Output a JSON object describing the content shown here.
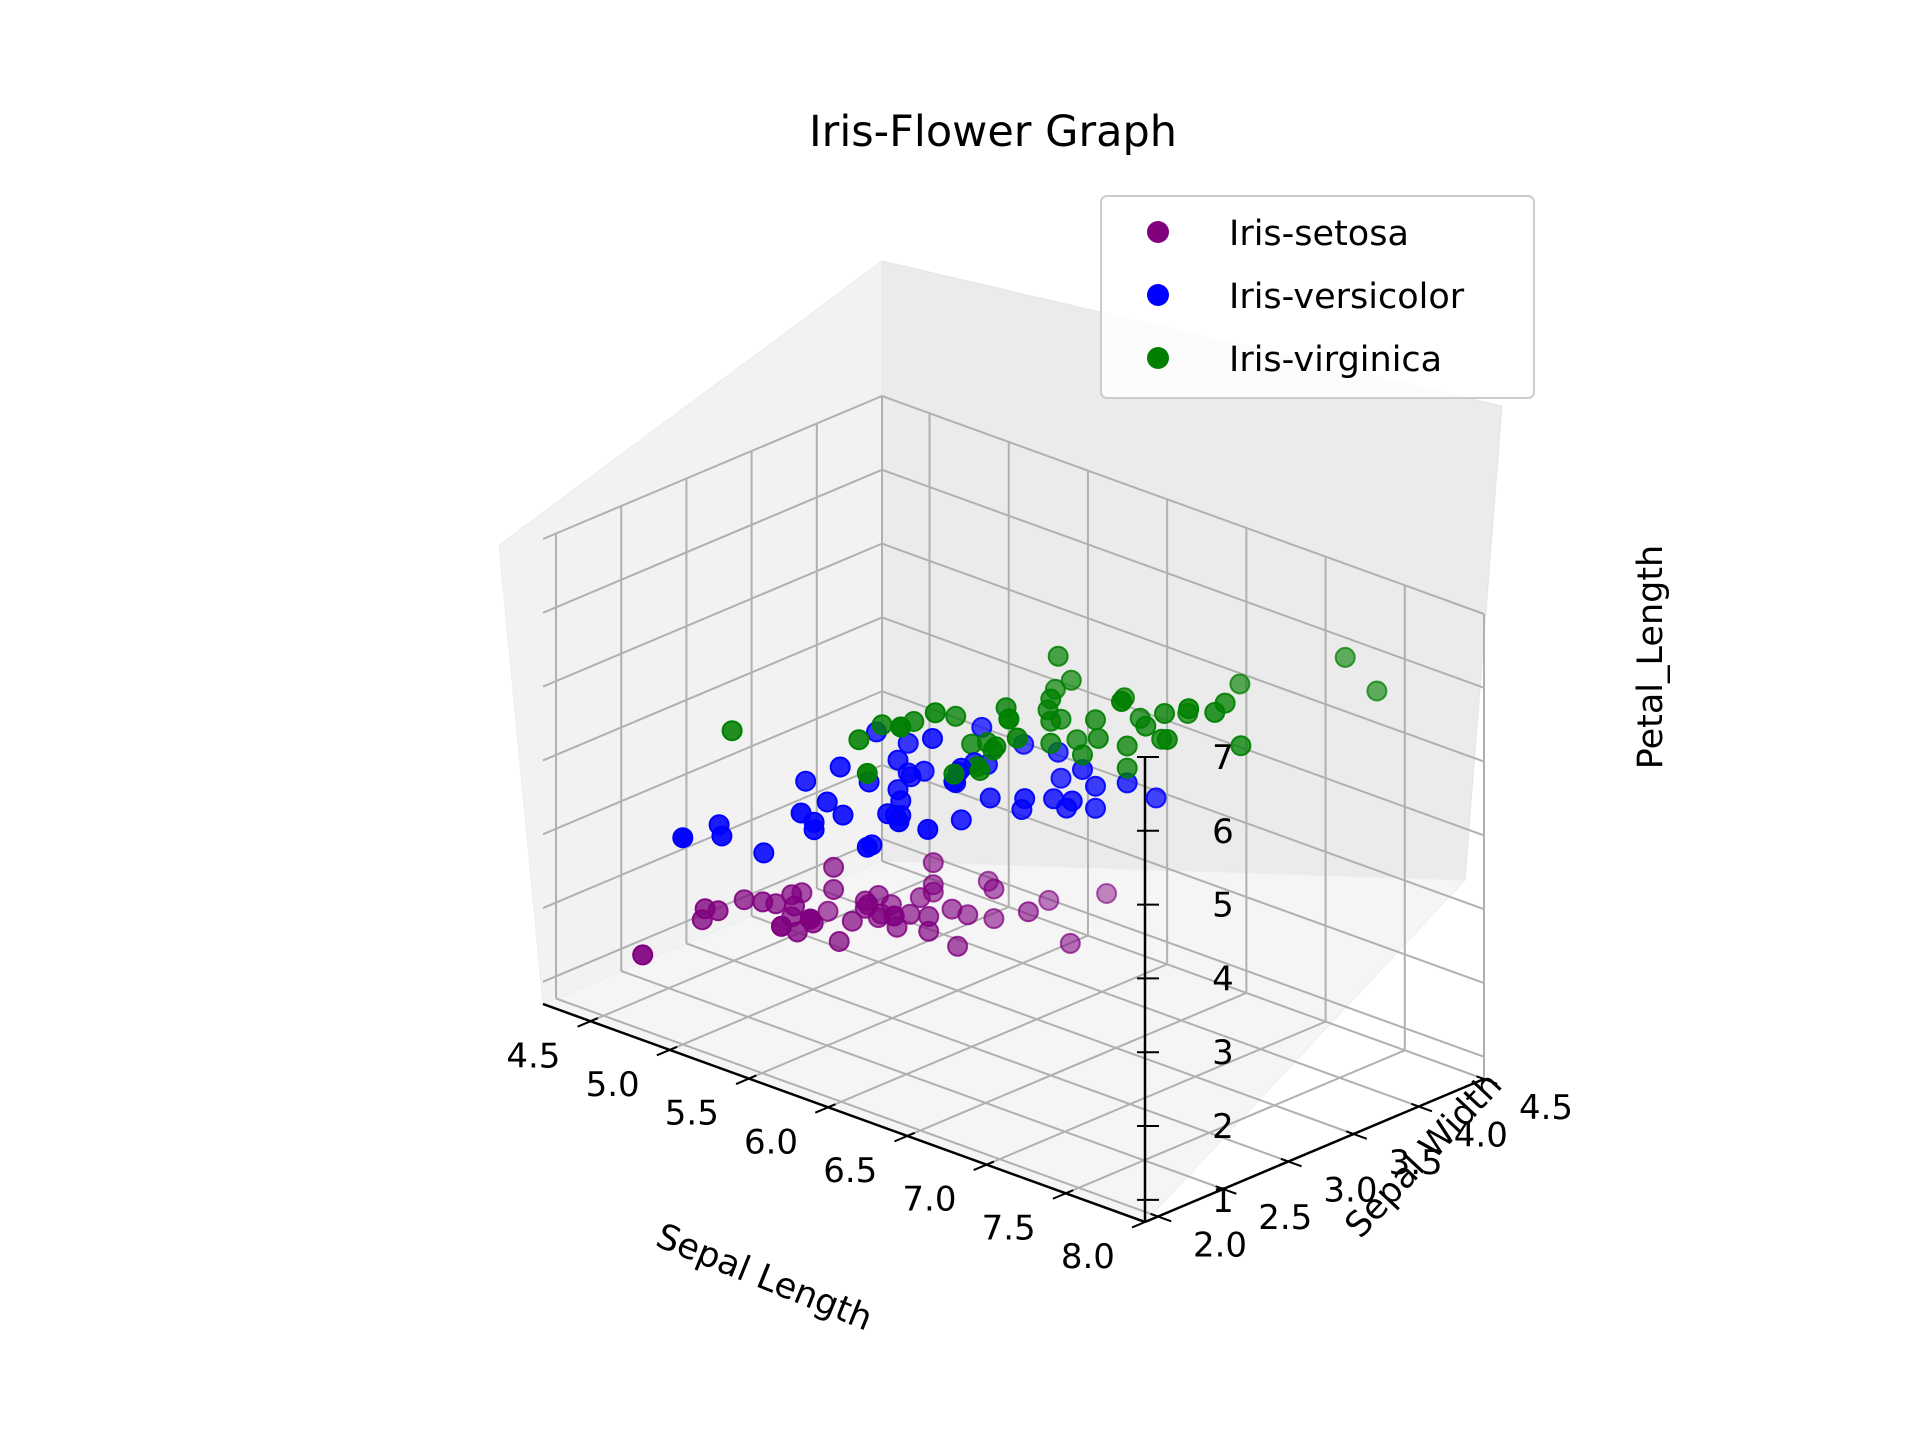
{
  "chart_data": {
    "type": "scatter",
    "title": "Iris-Flower Graph",
    "projection": "3d",
    "axes": {
      "x": {
        "label": "Sepal Length",
        "ticks": [
          "4.5",
          "5.0",
          "5.5",
          "6.0",
          "6.5",
          "7.0",
          "7.5",
          "8.0"
        ],
        "range": [
          4.2,
          8.0
        ]
      },
      "y": {
        "label": "Sepal Width",
        "ticks": [
          "2.0",
          "2.5",
          "3.0",
          "3.5",
          "4.0",
          "4.5"
        ],
        "range": [
          1.9,
          4.5
        ]
      },
      "z": {
        "label": "Petal_Length",
        "ticks": [
          "1",
          "2",
          "3",
          "4",
          "5",
          "6",
          "7"
        ],
        "range": [
          0.7,
          7.0
        ]
      }
    },
    "grid": true,
    "legend": {
      "position": "top-right"
    },
    "series": [
      {
        "name": "Iris-setosa",
        "color": "#800080",
        "points": [
          [
            5.1,
            3.5,
            1.4
          ],
          [
            4.9,
            3.0,
            1.4
          ],
          [
            4.7,
            3.2,
            1.3
          ],
          [
            4.6,
            3.1,
            1.5
          ],
          [
            5.0,
            3.6,
            1.4
          ],
          [
            5.4,
            3.9,
            1.7
          ],
          [
            4.6,
            3.4,
            1.4
          ],
          [
            5.0,
            3.4,
            1.5
          ],
          [
            4.4,
            2.9,
            1.4
          ],
          [
            4.9,
            3.1,
            1.5
          ],
          [
            5.4,
            3.7,
            1.5
          ],
          [
            4.8,
            3.4,
            1.6
          ],
          [
            4.8,
            3.0,
            1.4
          ],
          [
            4.3,
            3.0,
            1.1
          ],
          [
            5.8,
            4.0,
            1.2
          ],
          [
            5.7,
            4.4,
            1.5
          ],
          [
            5.4,
            3.9,
            1.3
          ],
          [
            5.1,
            3.5,
            1.4
          ],
          [
            5.7,
            3.8,
            1.7
          ],
          [
            5.1,
            3.8,
            1.5
          ],
          [
            5.4,
            3.4,
            1.7
          ],
          [
            5.1,
            3.7,
            1.5
          ],
          [
            4.6,
            3.6,
            1.0
          ],
          [
            5.1,
            3.3,
            1.7
          ],
          [
            4.8,
            3.4,
            1.9
          ],
          [
            5.0,
            3.0,
            1.6
          ],
          [
            5.0,
            3.4,
            1.6
          ],
          [
            5.2,
            3.5,
            1.5
          ],
          [
            5.2,
            3.4,
            1.4
          ],
          [
            4.7,
            3.2,
            1.6
          ],
          [
            4.8,
            3.1,
            1.6
          ],
          [
            5.4,
            3.4,
            1.5
          ],
          [
            5.2,
            4.1,
            1.5
          ],
          [
            5.5,
            4.2,
            1.4
          ],
          [
            4.9,
            3.1,
            1.5
          ],
          [
            5.0,
            3.2,
            1.2
          ],
          [
            5.5,
            3.5,
            1.3
          ],
          [
            4.9,
            3.1,
            1.5
          ],
          [
            4.4,
            3.0,
            1.3
          ],
          [
            5.1,
            3.4,
            1.5
          ],
          [
            5.0,
            3.5,
            1.3
          ],
          [
            4.5,
            2.3,
            1.3
          ],
          [
            4.4,
            3.2,
            1.3
          ],
          [
            5.0,
            3.5,
            1.6
          ],
          [
            5.1,
            3.8,
            1.9
          ],
          [
            4.8,
            3.0,
            1.4
          ],
          [
            5.1,
            3.8,
            1.6
          ],
          [
            4.6,
            3.2,
            1.4
          ],
          [
            5.3,
            3.7,
            1.5
          ],
          [
            5.0,
            3.3,
            1.4
          ]
        ]
      },
      {
        "name": "Iris-versicolor",
        "color": "#0000ff",
        "points": [
          [
            7.0,
            3.2,
            4.7
          ],
          [
            6.4,
            3.2,
            4.5
          ],
          [
            6.9,
            3.1,
            4.9
          ],
          [
            5.5,
            2.3,
            4.0
          ],
          [
            6.5,
            2.8,
            4.6
          ],
          [
            5.7,
            2.8,
            4.5
          ],
          [
            6.3,
            3.3,
            4.7
          ],
          [
            4.9,
            2.4,
            3.3
          ],
          [
            6.6,
            2.9,
            4.6
          ],
          [
            5.2,
            2.7,
            3.9
          ],
          [
            5.0,
            2.0,
            3.5
          ],
          [
            5.9,
            3.0,
            4.2
          ],
          [
            6.0,
            2.2,
            4.0
          ],
          [
            6.1,
            2.9,
            4.7
          ],
          [
            5.6,
            2.9,
            3.6
          ],
          [
            6.7,
            3.1,
            4.4
          ],
          [
            5.6,
            3.0,
            4.5
          ],
          [
            5.8,
            2.7,
            4.1
          ],
          [
            6.2,
            2.2,
            4.5
          ],
          [
            5.6,
            2.5,
            3.9
          ],
          [
            5.9,
            3.2,
            4.8
          ],
          [
            6.1,
            2.8,
            4.0
          ],
          [
            6.3,
            2.5,
            4.9
          ],
          [
            6.1,
            2.8,
            4.7
          ],
          [
            6.4,
            2.9,
            4.3
          ],
          [
            6.6,
            3.0,
            4.4
          ],
          [
            6.8,
            2.8,
            4.8
          ],
          [
            6.7,
            3.0,
            5.0
          ],
          [
            6.0,
            2.9,
            4.5
          ],
          [
            5.7,
            2.6,
            3.5
          ],
          [
            5.5,
            2.4,
            3.8
          ],
          [
            5.5,
            2.4,
            3.7
          ],
          [
            5.8,
            2.7,
            3.9
          ],
          [
            6.0,
            2.7,
            5.1
          ],
          [
            5.4,
            3.0,
            4.5
          ],
          [
            6.0,
            3.4,
            4.5
          ],
          [
            6.7,
            3.1,
            4.7
          ],
          [
            6.3,
            2.3,
            4.4
          ],
          [
            5.6,
            3.0,
            4.1
          ],
          [
            5.5,
            2.5,
            4.0
          ],
          [
            5.5,
            2.6,
            4.4
          ],
          [
            6.1,
            3.0,
            4.6
          ],
          [
            5.8,
            2.6,
            4.0
          ],
          [
            5.0,
            2.3,
            3.3
          ],
          [
            5.6,
            2.7,
            4.2
          ],
          [
            5.7,
            3.0,
            4.2
          ],
          [
            5.7,
            2.9,
            4.2
          ],
          [
            6.2,
            2.9,
            4.3
          ],
          [
            5.1,
            2.5,
            3.0
          ],
          [
            5.7,
            2.8,
            4.1
          ]
        ]
      },
      {
        "name": "Iris-virginica",
        "color": "#008000",
        "points": [
          [
            6.3,
            3.3,
            6.0
          ],
          [
            5.8,
            2.7,
            5.1
          ],
          [
            7.1,
            3.0,
            5.9
          ],
          [
            6.3,
            2.9,
            5.6
          ],
          [
            6.5,
            3.0,
            5.8
          ],
          [
            7.6,
            3.0,
            6.6
          ],
          [
            4.9,
            2.5,
            4.5
          ],
          [
            7.3,
            2.9,
            6.3
          ],
          [
            6.7,
            2.5,
            5.8
          ],
          [
            7.2,
            3.6,
            6.1
          ],
          [
            6.5,
            3.2,
            5.1
          ],
          [
            6.4,
            2.7,
            5.3
          ],
          [
            6.8,
            3.0,
            5.5
          ],
          [
            5.7,
            2.5,
            5.0
          ],
          [
            5.8,
            2.8,
            5.1
          ],
          [
            6.4,
            3.2,
            5.3
          ],
          [
            6.5,
            3.0,
            5.5
          ],
          [
            7.7,
            3.8,
            6.7
          ],
          [
            7.7,
            2.6,
            6.9
          ],
          [
            6.0,
            2.2,
            5.0
          ],
          [
            6.9,
            3.2,
            5.7
          ],
          [
            5.6,
            2.8,
            4.9
          ],
          [
            7.7,
            2.8,
            6.7
          ],
          [
            6.3,
            2.7,
            4.9
          ],
          [
            6.7,
            3.3,
            5.7
          ],
          [
            7.2,
            3.2,
            6.0
          ],
          [
            6.2,
            2.8,
            4.8
          ],
          [
            6.1,
            3.0,
            4.9
          ],
          [
            6.4,
            2.8,
            5.6
          ],
          [
            7.2,
            3.0,
            5.8
          ],
          [
            7.4,
            2.8,
            6.1
          ],
          [
            7.9,
            3.8,
            6.4
          ],
          [
            6.4,
            2.8,
            5.6
          ],
          [
            6.3,
            2.8,
            5.1
          ],
          [
            6.1,
            2.6,
            5.6
          ],
          [
            7.7,
            3.0,
            6.1
          ],
          [
            6.3,
            3.4,
            5.6
          ],
          [
            6.4,
            3.1,
            5.5
          ],
          [
            6.0,
            3.0,
            4.8
          ],
          [
            6.9,
            3.1,
            5.4
          ],
          [
            6.7,
            3.1,
            5.6
          ],
          [
            6.9,
            3.1,
            5.1
          ],
          [
            5.8,
            2.7,
            5.1
          ],
          [
            6.8,
            3.2,
            5.9
          ],
          [
            6.7,
            3.3,
            5.7
          ],
          [
            6.7,
            3.0,
            5.2
          ],
          [
            6.3,
            2.5,
            5.0
          ],
          [
            6.5,
            3.0,
            5.2
          ],
          [
            6.2,
            3.4,
            5.4
          ],
          [
            5.9,
            3.0,
            5.1
          ]
        ]
      }
    ]
  }
}
